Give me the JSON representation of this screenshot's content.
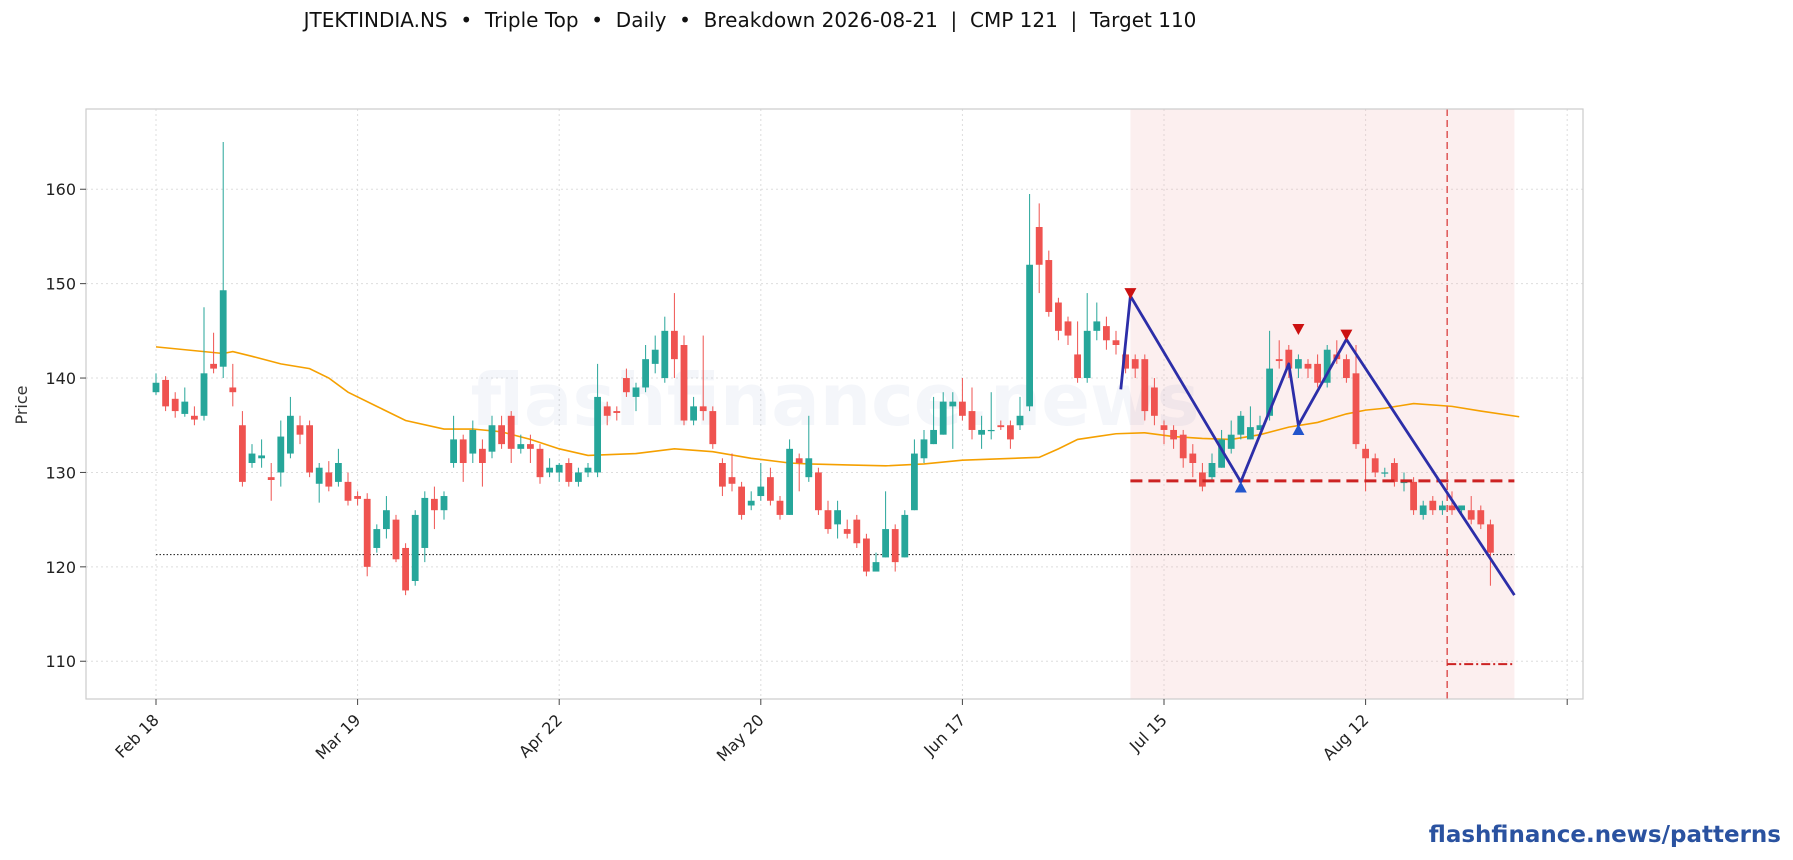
{
  "chart_data": {
    "type": "candlestick",
    "title": "JTEKTINDIA.NS  •  Triple Top  •  Daily  •  Breakdown 2026-08-21  |  CMP 121  |  Target 110",
    "ylabel": "Price",
    "ylim": [
      106,
      168.5
    ],
    "yticks": [
      110,
      120,
      130,
      140,
      150,
      160
    ],
    "xticks": [
      {
        "label": "Feb 18",
        "index": 0
      },
      {
        "label": "Mar 19",
        "index": 21
      },
      {
        "label": "Apr 22",
        "index": 42
      },
      {
        "label": "May 20",
        "index": 63
      },
      {
        "label": "Jun 17",
        "index": 84
      },
      {
        "label": "Jul 15",
        "index": 105
      },
      {
        "label": "Aug 12",
        "index": 126
      },
      {
        "label": "",
        "index": 147
      }
    ],
    "grid": true,
    "up_color": "#26a69a",
    "down_color": "#ef5350",
    "candles": [
      [
        138.5,
        139.5,
        140.5,
        138.2
      ],
      [
        139.8,
        137.0,
        140.2,
        136.5
      ],
      [
        137.8,
        136.5,
        138.5,
        135.8
      ],
      [
        136.2,
        137.5,
        139.0,
        135.9
      ],
      [
        136.0,
        135.6,
        137.0,
        135.0
      ],
      [
        136.0,
        140.5,
        147.5,
        135.5
      ],
      [
        141.5,
        141.0,
        144.8,
        140.5
      ],
      [
        141.2,
        149.3,
        165.0,
        140.0
      ],
      [
        139.0,
        138.5,
        141.5,
        137.0
      ],
      [
        135.0,
        129.0,
        136.5,
        128.5
      ],
      [
        131.0,
        132.0,
        133.0,
        130.5
      ],
      [
        131.5,
        131.8,
        133.5,
        130.5
      ],
      [
        129.5,
        129.2,
        131.0,
        127.0
      ],
      [
        130.0,
        133.8,
        135.5,
        128.5
      ],
      [
        132.0,
        136.0,
        138.0,
        131.5
      ],
      [
        135.0,
        134.0,
        136.0,
        133.0
      ],
      [
        135.0,
        130.0,
        135.5,
        129.5
      ],
      [
        128.8,
        130.5,
        131.0,
        126.8
      ],
      [
        130.0,
        128.5,
        131.2,
        128.0
      ],
      [
        129.0,
        131.0,
        132.5,
        128.5
      ],
      [
        129.0,
        127.0,
        130.0,
        126.5
      ],
      [
        127.5,
        127.2,
        128.0,
        126.5
      ],
      [
        127.2,
        120.0,
        127.8,
        119.0
      ],
      [
        122.0,
        124.0,
        124.5,
        121.5
      ],
      [
        124.0,
        126.0,
        127.5,
        123.0
      ],
      [
        125.0,
        120.8,
        125.5,
        120.5
      ],
      [
        122.0,
        117.5,
        122.5,
        117.0
      ],
      [
        118.5,
        125.5,
        126.0,
        118.0
      ],
      [
        122.0,
        127.3,
        128.0,
        120.5
      ],
      [
        127.2,
        126.0,
        128.5,
        124.0
      ],
      [
        126.0,
        127.5,
        128.0,
        125.0
      ],
      [
        131.0,
        133.5,
        136.0,
        130.5
      ],
      [
        133.5,
        131.0,
        134.0,
        129.0
      ],
      [
        132.0,
        134.5,
        135.5,
        131.0
      ],
      [
        132.5,
        131.0,
        133.5,
        128.5
      ],
      [
        132.2,
        135.0,
        136.0,
        131.5
      ],
      [
        135.0,
        133.0,
        136.0,
        132.5
      ],
      [
        136.0,
        132.5,
        136.5,
        131.0
      ],
      [
        132.5,
        133.0,
        134.0,
        132.0
      ],
      [
        133.0,
        132.5,
        134.0,
        131.0
      ],
      [
        132.5,
        129.5,
        133.0,
        128.8
      ],
      [
        130.0,
        130.5,
        131.5,
        129.5
      ],
      [
        130.0,
        130.8,
        131.0,
        129.0
      ],
      [
        131.0,
        129.0,
        131.5,
        128.5
      ],
      [
        129.0,
        130.0,
        130.5,
        128.5
      ],
      [
        130.0,
        130.5,
        131.0,
        129.5
      ],
      [
        130.0,
        138.0,
        141.5,
        129.5
      ],
      [
        137.0,
        136.0,
        137.5,
        135.0
      ],
      [
        136.5,
        136.3,
        137.0,
        135.5
      ],
      [
        140.0,
        138.5,
        141.0,
        138.0
      ],
      [
        138.0,
        139.0,
        139.5,
        136.5
      ],
      [
        139.0,
        142.0,
        143.5,
        138.5
      ],
      [
        141.5,
        143.0,
        144.5,
        140.5
      ],
      [
        140.0,
        145.0,
        146.5,
        139.5
      ],
      [
        145.0,
        142.0,
        149.0,
        140.0
      ],
      [
        143.5,
        135.5,
        144.5,
        135.0
      ],
      [
        135.5,
        137.0,
        138.0,
        135.0
      ],
      [
        137.0,
        136.5,
        144.5,
        135.5
      ],
      [
        136.5,
        133.0,
        137.0,
        132.5
      ],
      [
        131.0,
        128.5,
        131.5,
        127.5
      ],
      [
        129.5,
        128.8,
        132.0,
        128.0
      ],
      [
        128.5,
        125.5,
        129.0,
        125.0
      ],
      [
        126.5,
        127.0,
        128.0,
        126.0
      ],
      [
        127.5,
        128.5,
        131.0,
        127.0
      ],
      [
        129.5,
        127.0,
        130.5,
        126.5
      ],
      [
        127.0,
        125.5,
        127.5,
        125.0
      ],
      [
        125.5,
        132.5,
        133.5,
        125.5
      ],
      [
        131.5,
        131.0,
        132.0,
        128.0
      ],
      [
        129.5,
        131.5,
        136.0,
        129.0
      ],
      [
        130.0,
        126.0,
        130.5,
        125.5
      ],
      [
        126.0,
        124.0,
        127.0,
        123.5
      ],
      [
        124.5,
        126.0,
        127.0,
        123.0
      ],
      [
        124.0,
        123.5,
        125.0,
        123.0
      ],
      [
        125.0,
        122.5,
        125.5,
        122.0
      ],
      [
        123.0,
        119.5,
        123.5,
        119.0
      ],
      [
        119.5,
        120.5,
        121.5,
        119.5
      ],
      [
        121.0,
        124.0,
        128.0,
        121.0
      ],
      [
        124.0,
        120.5,
        124.5,
        119.5
      ],
      [
        121.0,
        125.5,
        126.0,
        121.0
      ],
      [
        126.0,
        132.0,
        133.5,
        126.0
      ],
      [
        131.5,
        133.5,
        134.5,
        131.0
      ],
      [
        133.0,
        134.5,
        138.0,
        133.0
      ],
      [
        134.0,
        137.5,
        138.5,
        134.0
      ],
      [
        137.0,
        137.5,
        138.5,
        132.5
      ],
      [
        137.5,
        136.0,
        140.0,
        135.5
      ],
      [
        136.5,
        134.5,
        139.0,
        133.5
      ],
      [
        134.0,
        134.5,
        136.0,
        132.5
      ],
      [
        134.5,
        134.5,
        138.5,
        133.5
      ],
      [
        135.0,
        134.8,
        135.5,
        134.5
      ],
      [
        135.0,
        133.5,
        135.5,
        132.5
      ],
      [
        135.0,
        136.0,
        138.0,
        134.5
      ],
      [
        137.0,
        152.0,
        159.5,
        136.5
      ],
      [
        156.0,
        152.0,
        158.5,
        149.0
      ],
      [
        152.5,
        147.0,
        153.5,
        146.5
      ],
      [
        148.0,
        145.0,
        148.5,
        144.0
      ],
      [
        146.0,
        144.5,
        146.5,
        143.5
      ],
      [
        142.5,
        140.0,
        146.0,
        139.5
      ],
      [
        140.0,
        145.0,
        149.0,
        139.5
      ],
      [
        145.0,
        146.0,
        148.0,
        144.0
      ],
      [
        145.5,
        144.0,
        146.5,
        143.0
      ],
      [
        144.0,
        143.5,
        145.0,
        142.5
      ],
      [
        142.5,
        141.0,
        144.5,
        140.5
      ],
      [
        142.0,
        141.0,
        142.5,
        140.0
      ],
      [
        142.0,
        136.5,
        142.5,
        135.5
      ],
      [
        139.0,
        136.0,
        140.0,
        135.0
      ],
      [
        135.0,
        134.5,
        135.5,
        133.0
      ],
      [
        134.5,
        133.5,
        135.0,
        132.5
      ],
      [
        134.0,
        131.5,
        134.5,
        130.5
      ],
      [
        132.0,
        131.0,
        133.0,
        129.5
      ],
      [
        130.0,
        128.5,
        131.0,
        128.0
      ],
      [
        129.5,
        131.0,
        132.0,
        129.0
      ],
      [
        130.5,
        133.5,
        134.5,
        130.5
      ],
      [
        132.5,
        134.0,
        135.5,
        132.0
      ],
      [
        134.0,
        136.0,
        136.5,
        133.5
      ],
      [
        133.5,
        134.8,
        137.0,
        133.5
      ],
      [
        134.5,
        135.0,
        136.0,
        134.5
      ],
      [
        136.0,
        141.0,
        145.0,
        135.5
      ],
      [
        142.0,
        141.8,
        144.0,
        141.0
      ],
      [
        143.0,
        141.0,
        143.5,
        140.0
      ],
      [
        141.0,
        142.0,
        142.5,
        140.0
      ],
      [
        141.5,
        141.0,
        142.0,
        140.0
      ],
      [
        141.5,
        139.5,
        142.5,
        139.0
      ],
      [
        139.5,
        143.0,
        143.5,
        139.0
      ],
      [
        142.5,
        142.0,
        144.0,
        141.5
      ],
      [
        142.0,
        140.0,
        142.5,
        139.5
      ],
      [
        140.5,
        133.0,
        143.5,
        132.5
      ],
      [
        132.5,
        131.5,
        133.0,
        128.0
      ],
      [
        131.5,
        130.0,
        132.0,
        129.5
      ],
      [
        130.0,
        130.0,
        130.5,
        129.5
      ],
      [
        131.0,
        129.0,
        131.5,
        128.5
      ],
      [
        129.0,
        129.0,
        130.0,
        128.0
      ],
      [
        129.0,
        126.0,
        129.5,
        125.5
      ],
      [
        125.5,
        126.5,
        127.0,
        125.0
      ],
      [
        127.0,
        126.0,
        127.5,
        125.5
      ],
      [
        126.0,
        126.5,
        127.0,
        125.5
      ],
      [
        126.5,
        126.0,
        128.0,
        125.5
      ],
      [
        126.0,
        126.5,
        126.5,
        125.5
      ],
      [
        126.0,
        125.0,
        127.5,
        124.5
      ],
      [
        126.0,
        124.5,
        126.5,
        124.0
      ],
      [
        124.5,
        121.5,
        125.0,
        118.0
      ]
    ],
    "moving_average": {
      "color": "#f5a000",
      "points": [
        [
          0,
          143.3
        ],
        [
          7,
          142.6
        ],
        [
          8,
          142.8
        ],
        [
          10,
          142.3
        ],
        [
          13,
          141.5
        ],
        [
          16,
          141.0
        ],
        [
          18,
          140.0
        ],
        [
          20,
          138.5
        ],
        [
          23,
          137.0
        ],
        [
          26,
          135.5
        ],
        [
          30,
          134.6
        ],
        [
          33,
          134.6
        ],
        [
          36,
          134.3
        ],
        [
          39,
          133.5
        ],
        [
          42,
          132.5
        ],
        [
          45,
          131.8
        ],
        [
          50,
          132.0
        ],
        [
          54,
          132.5
        ],
        [
          58,
          132.2
        ],
        [
          62,
          131.5
        ],
        [
          66,
          131.0
        ],
        [
          68,
          130.9
        ],
        [
          72,
          130.8
        ],
        [
          76,
          130.7
        ],
        [
          80,
          130.9
        ],
        [
          84,
          131.3
        ],
        [
          92,
          131.6
        ],
        [
          94,
          132.5
        ],
        [
          96,
          133.5
        ],
        [
          98,
          133.8
        ],
        [
          100,
          134.1
        ],
        [
          103,
          134.2
        ],
        [
          106,
          133.8
        ],
        [
          109,
          133.6
        ],
        [
          112,
          133.5
        ],
        [
          115,
          134.0
        ],
        [
          118,
          134.8
        ],
        [
          121,
          135.3
        ],
        [
          124,
          136.2
        ],
        [
          126,
          136.6
        ],
        [
          128,
          136.8
        ],
        [
          131,
          137.3
        ],
        [
          135,
          137.0
        ],
        [
          138,
          136.5
        ],
        [
          142,
          135.9
        ]
      ]
    },
    "cmp_line": {
      "value": 121.3,
      "from_index": 0,
      "to_index": 141.5,
      "color": "#333333"
    },
    "pattern_region": {
      "from_index": 101.5,
      "to_index": 141.5,
      "color": "#f2b8b8"
    },
    "breakdown": {
      "index": 134.5,
      "label": "Breakdown 2026-08-21",
      "color": "#e06060"
    },
    "neckline": {
      "value": 129.1,
      "from_index": 101.5,
      "to_index": 141.5,
      "color": "#cc2222"
    },
    "target": {
      "value": 109.7,
      "from_index": 134.5,
      "to_index": 141.5,
      "color": "#cc2222"
    },
    "pattern_path": {
      "color": "#2c2ea8",
      "points": [
        [
          100.5,
          138.8
        ],
        [
          101.5,
          148.7
        ],
        [
          113,
          129.0
        ],
        [
          118,
          141.5
        ],
        [
          119,
          135.0
        ],
        [
          124,
          144.1
        ],
        [
          141.5,
          117.0
        ]
      ]
    },
    "peaks": [
      [
        101.5,
        149.0
      ],
      [
        119,
        145.2
      ],
      [
        124,
        144.6
      ]
    ],
    "troughs": [
      [
        113,
        128.4
      ],
      [
        119,
        134.5
      ]
    ],
    "peak_color": "#cc1111",
    "trough_color": "#2255cc"
  },
  "watermark": {
    "center_text": "flashfinance.news",
    "footer_text": "flashfinance.news/patterns"
  }
}
